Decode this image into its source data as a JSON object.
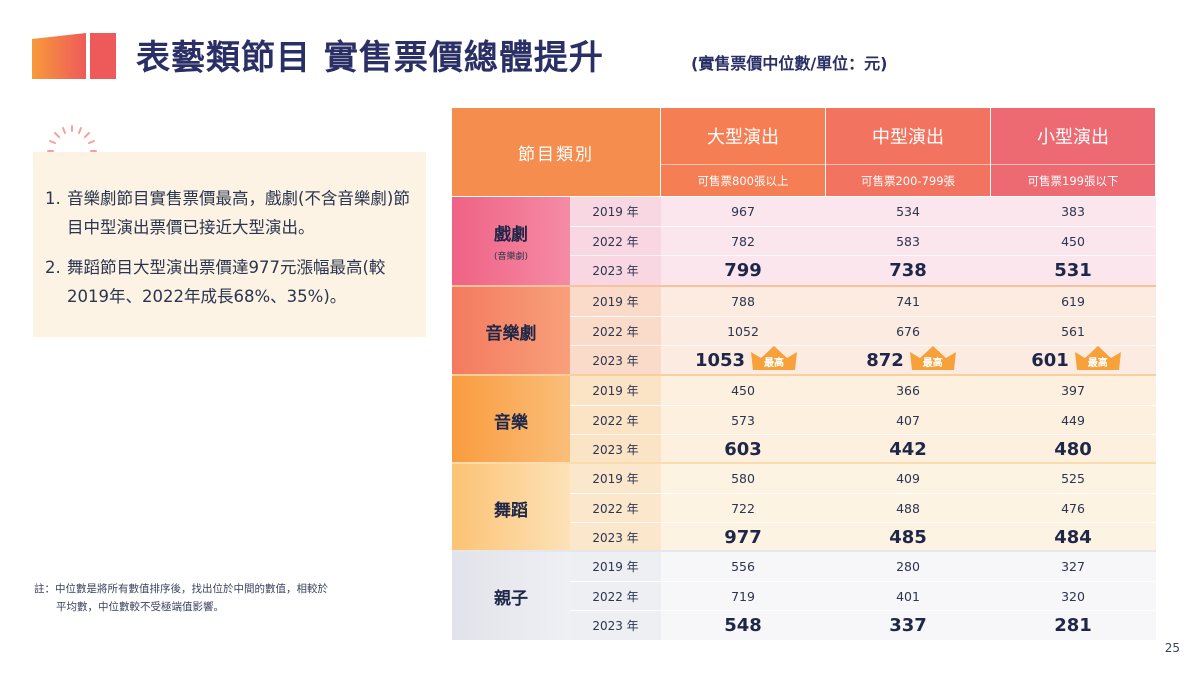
{
  "header": {
    "title": "表藝類節目 實售票價總體提升",
    "subtitle": "(實售票價中位數/單位：元)"
  },
  "points": [
    {
      "num": "1.",
      "text": "音樂劇節目實售票價最高，戲劇(不含音樂劇)節目中型演出票價已接近大型演出。"
    },
    {
      "num": "2.",
      "text": "舞蹈節目大型演出票價達977元漲幅最高(較2019年、2022年成長68%、35%)。"
    }
  ],
  "note": {
    "line1": "註：中位數是將所有數值排序後，找出位於中間的數值，相較於",
    "line2": "平均數，中位數較不受極端值影響。"
  },
  "page_number": "25",
  "table": {
    "corner_label": "節目類別",
    "columns": [
      {
        "name": "大型演出",
        "desc": "可售票800張以上"
      },
      {
        "name": "中型演出",
        "desc": "可售票200-799張"
      },
      {
        "name": "小型演出",
        "desc": "可售票199張以下"
      }
    ],
    "highlight_label": "最高",
    "groups": [
      {
        "name": "戲劇",
        "note": "(音樂劇)",
        "rows": [
          {
            "year": "2019 年",
            "values": [
              "967",
              "534",
              "383"
            ]
          },
          {
            "year": "2022 年",
            "values": [
              "782",
              "583",
              "450"
            ]
          },
          {
            "year": "2023 年",
            "values": [
              "799",
              "738",
              "531"
            ]
          }
        ]
      },
      {
        "name": "音樂劇",
        "note": "",
        "rows": [
          {
            "year": "2019 年",
            "values": [
              "788",
              "741",
              "619"
            ]
          },
          {
            "year": "2022 年",
            "values": [
              "1052",
              "676",
              "561"
            ]
          },
          {
            "year": "2023 年",
            "values": [
              "1053",
              "872",
              "601"
            ]
          }
        ]
      },
      {
        "name": "音樂",
        "note": "",
        "rows": [
          {
            "year": "2019 年",
            "values": [
              "450",
              "366",
              "397"
            ]
          },
          {
            "year": "2022 年",
            "values": [
              "573",
              "407",
              "449"
            ]
          },
          {
            "year": "2023 年",
            "values": [
              "603",
              "442",
              "480"
            ]
          }
        ]
      },
      {
        "name": "舞蹈",
        "note": "",
        "rows": [
          {
            "year": "2019 年",
            "values": [
              "580",
              "409",
              "525"
            ]
          },
          {
            "year": "2022 年",
            "values": [
              "722",
              "488",
              "476"
            ]
          },
          {
            "year": "2023 年",
            "values": [
              "977",
              "485",
              "484"
            ]
          }
        ]
      },
      {
        "name": "親子",
        "note": "",
        "rows": [
          {
            "year": "2019 年",
            "values": [
              "556",
              "280",
              "327"
            ]
          },
          {
            "year": "2022 年",
            "values": [
              "719",
              "401",
              "320"
            ]
          },
          {
            "year": "2023 年",
            "values": [
              "548",
              "337",
              "281"
            ]
          }
        ]
      }
    ]
  },
  "colors": {
    "title": "#2a2f66",
    "card_bg": "#fdf3e4",
    "header_orange": "#f58d4f",
    "header_pink": "#ee6a73",
    "crown": "#f7a13a"
  },
  "icons": [
    "ticket-icon",
    "sunburst-icon",
    "crown-icon"
  ]
}
